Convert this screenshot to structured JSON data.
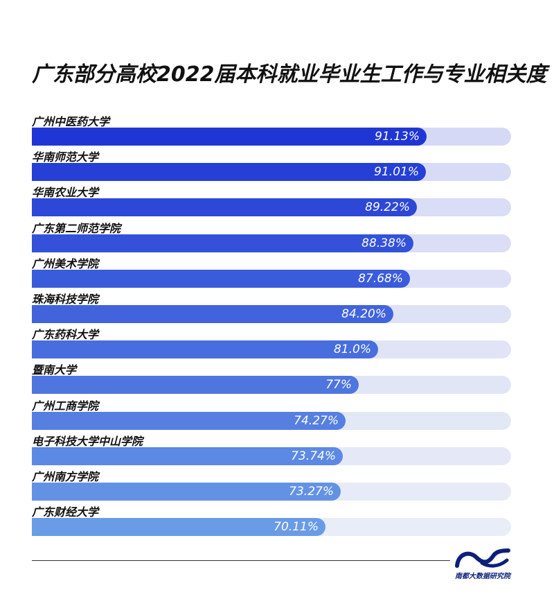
{
  "title": "广东部分高校2022届本科就业毕业生工作与专业相关度",
  "chart_data": {
    "type": "bar",
    "orientation": "horizontal",
    "title": "广东部分高校2022届本科就业毕业生工作与专业相关度",
    "xlim": [
      0,
      100
    ],
    "categories": [
      "广州中医药大学",
      "华南师范大学",
      "华南农业大学",
      "广东第二师范学院",
      "广州美术学院",
      "珠海科技学院",
      "广东药科大学",
      "暨南大学",
      "广州工商学院",
      "电子科技大学中山学院",
      "广州南方学院",
      "广东财经大学"
    ],
    "values": [
      91.13,
      91.01,
      89.22,
      88.38,
      87.68,
      84.2,
      81.0,
      77,
      74.27,
      73.74,
      73.27,
      70.11
    ],
    "value_labels": [
      "91.13%",
      "91.01%",
      "89.22%",
      "88.38%",
      "87.68%",
      "84.20%",
      "81.0%",
      "77%",
      "74.27%",
      "73.74%",
      "73.27%",
      "70.11%"
    ],
    "colors": {
      "bar_top": "#1f36d4",
      "bar_bottom": "#6a9be6",
      "track_top": "#d6d9f5",
      "track_bottom": "#e8edf7"
    }
  },
  "footer": {
    "logo_text": "南都大数据研究院",
    "logo_color": "#0d1f7a"
  }
}
